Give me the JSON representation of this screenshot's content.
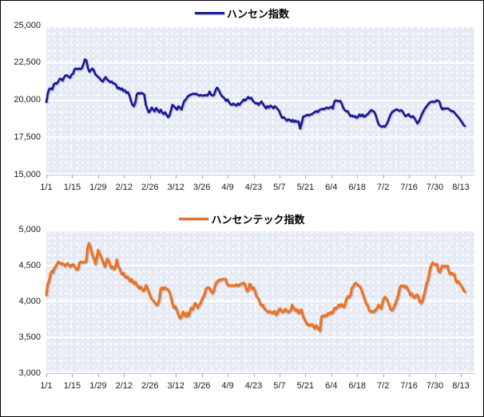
{
  "chart_data": [
    {
      "type": "line",
      "legend_label": "ハンセン指数",
      "line_color": "#1a1a96",
      "legend_position": "top-center",
      "grid": "horizontal-white",
      "y_min": 15000,
      "y_max": 25000,
      "y_tick_labels": [
        "25,000",
        "22,500",
        "20,000",
        "17,500",
        "15,000"
      ],
      "x_tick_labels": [
        "1/1",
        "1/15",
        "1/29",
        "2/12",
        "2/26",
        "3/12",
        "3/26",
        "4/9",
        "4/23",
        "5/7",
        "5/21",
        "6/4",
        "6/18",
        "7/2",
        "7/16",
        "7/30",
        "8/13"
      ],
      "values": [
        19860,
        20480,
        20750,
        20780,
        20710,
        21050,
        21130,
        21100,
        21240,
        21420,
        21420,
        21310,
        21540,
        21660,
        21660,
        21570,
        21500,
        21720,
        21770,
        22070,
        22120,
        22070,
        22120,
        22070,
        22160,
        22430,
        22730,
        22660,
        22160,
        21900,
        21990,
        22120,
        21990,
        21720,
        21630,
        21540,
        21450,
        21310,
        21240,
        21420,
        21540,
        21360,
        21310,
        21190,
        21240,
        21130,
        21100,
        21010,
        20780,
        20830,
        20710,
        20780,
        20600,
        20660,
        20480,
        20530,
        20300,
        19950,
        19680,
        19590,
        19860,
        20390,
        20480,
        20430,
        20480,
        20440,
        20360,
        19680,
        19410,
        19180,
        19290,
        19500,
        19360,
        19240,
        19470,
        19330,
        19180,
        19360,
        19180,
        19060,
        19180,
        19010,
        18850,
        18970,
        19330,
        19680,
        19590,
        19470,
        19360,
        19590,
        19500,
        19360,
        19680,
        19950,
        20040,
        20210,
        20300,
        20360,
        20390,
        20430,
        20390,
        20430,
        20360,
        20300,
        20340,
        20300,
        20300,
        20340,
        20300,
        20360,
        20570,
        20360,
        20300,
        20360,
        20660,
        20830,
        20710,
        20480,
        20300,
        20210,
        20120,
        19950,
        20040,
        19860,
        19720,
        19680,
        19770,
        19680,
        19630,
        19770,
        19680,
        19810,
        19910,
        20040,
        19980,
        20090,
        20210,
        20090,
        20160,
        19980,
        19860,
        19770,
        19810,
        19680,
        19810,
        19910,
        19730,
        19590,
        19450,
        19590,
        19500,
        19630,
        19560,
        19450,
        19590,
        19500,
        19380,
        19240,
        18970,
        18800,
        18850,
        18740,
        18620,
        18710,
        18670,
        18560,
        18670,
        18530,
        18620,
        18530,
        18560,
        18090,
        18440,
        18880,
        18920,
        18970,
        19030,
        18970,
        19030,
        19060,
        19150,
        19200,
        19270,
        19200,
        19330,
        19380,
        19420,
        19380,
        19450,
        19500,
        19450,
        19500,
        19560,
        19420,
        19890,
        19980,
        19950,
        19910,
        19950,
        19770,
        19500,
        19330,
        19240,
        19270,
        19060,
        18920,
        18970,
        18880,
        18920,
        18800,
        18880,
        19030,
        18920,
        19030,
        18880,
        18920,
        19030,
        19100,
        19240,
        19330,
        19270,
        19200,
        18970,
        18620,
        18350,
        18260,
        18210,
        18260,
        18210,
        18350,
        18530,
        18800,
        19030,
        19200,
        19270,
        19330,
        19380,
        19330,
        19270,
        19330,
        19240,
        19060,
        18920,
        18970,
        19060,
        18920,
        18850,
        18920,
        18800,
        18620,
        18440,
        18560,
        18800,
        19060,
        19240,
        19420,
        19560,
        19680,
        19810,
        19860,
        19910,
        19860,
        19910,
        19980,
        19950,
        19860,
        19500,
        19380,
        19450,
        19420,
        19450,
        19420,
        19330,
        19240,
        19270,
        19150,
        19030,
        18920,
        18800,
        18670,
        18530,
        18350,
        18260
      ]
    },
    {
      "type": "line",
      "legend_label": "ハンセンテック指数",
      "line_color": "#ee7220",
      "legend_position": "top-center",
      "grid": "horizontal-white",
      "y_min": 3000,
      "y_max": 5000,
      "y_tick_labels": [
        "5,000",
        "4,500",
        "4,000",
        "3,500",
        "3,000"
      ],
      "x_tick_labels": [
        "1/1",
        "1/15",
        "1/29",
        "2/12",
        "2/26",
        "3/12",
        "3/26",
        "4/9",
        "4/23",
        "5/7",
        "5/21",
        "6/4",
        "6/18",
        "7/2",
        "7/16",
        "7/30",
        "8/13"
      ],
      "values": [
        4090,
        4245,
        4280,
        4375,
        4420,
        4405,
        4465,
        4485,
        4520,
        4550,
        4540,
        4520,
        4530,
        4515,
        4495,
        4515,
        4530,
        4505,
        4485,
        4505,
        4515,
        4495,
        4465,
        4440,
        4465,
        4540,
        4550,
        4550,
        4540,
        4550,
        4555,
        4745,
        4810,
        4765,
        4690,
        4635,
        4580,
        4520,
        4615,
        4715,
        4670,
        4625,
        4580,
        4530,
        4485,
        4550,
        4595,
        4560,
        4505,
        4465,
        4485,
        4450,
        4480,
        4580,
        4495,
        4465,
        4410,
        4375,
        4395,
        4355,
        4330,
        4345,
        4320,
        4280,
        4310,
        4270,
        4245,
        4270,
        4230,
        4205,
        4180,
        4205,
        4170,
        4145,
        4170,
        4225,
        4190,
        4135,
        4085,
        4040,
        4020,
        3995,
        3975,
        3950,
        3965,
        4025,
        4170,
        4190,
        4170,
        4195,
        4180,
        4170,
        4150,
        4115,
        4040,
        3965,
        3910,
        3930,
        3885,
        3840,
        3780,
        3765,
        3800,
        3855,
        3810,
        3790,
        3840,
        3800,
        3855,
        3910,
        3885,
        3930,
        3975,
        3950,
        3910,
        3950,
        3975,
        4025,
        4060,
        4095,
        4170,
        4190,
        4195,
        4180,
        4135,
        4115,
        4150,
        4225,
        4265,
        4280,
        4300,
        4295,
        4310,
        4310,
        4310,
        4310,
        4245,
        4220,
        4220,
        4220,
        4220,
        4220,
        4220,
        4235,
        4220,
        4220,
        4245,
        4245,
        4255,
        4255,
        4195,
        4145,
        4160,
        4245,
        4220,
        4170,
        4190,
        4145,
        4080,
        4050,
        4025,
        3965,
        3940,
        3950,
        3900,
        3885,
        3865,
        3850,
        3865,
        3850,
        3835,
        3855,
        3865,
        3810,
        3835,
        3885,
        3900,
        3865,
        3850,
        3875,
        3895,
        3865,
        3850,
        3865,
        3875,
        3950,
        3910,
        3885,
        3865,
        3885,
        3835,
        3865,
        3885,
        3800,
        3765,
        3725,
        3690,
        3670,
        3680,
        3665,
        3680,
        3650,
        3625,
        3665,
        3640,
        3615,
        3590,
        3780,
        3800,
        3790,
        3810,
        3800,
        3835,
        3825,
        3850,
        3835,
        3865,
        3910,
        3900,
        3920,
        3950,
        3930,
        3960,
        3935,
        3920,
        3975,
        4040,
        4070,
        4060,
        4095,
        4190,
        4205,
        4245,
        4255,
        4235,
        4220,
        4205,
        4170,
        4115,
        4060,
        4005,
        3960,
        3935,
        3875,
        3855,
        3865,
        3850,
        3865,
        3885,
        3910,
        3950,
        3925,
        3900,
        3985,
        4040,
        4060,
        4035,
        3995,
        3950,
        3895,
        3875,
        3900,
        3930,
        3985,
        4040,
        4095,
        4195,
        4220,
        4210,
        4220,
        4195,
        4210,
        4170,
        4135,
        4085,
        4110,
        4070,
        4050,
        4080,
        4095,
        4060,
        3995,
        3975,
        4005,
        4070,
        4150,
        4245,
        4280,
        4375,
        4465,
        4515,
        4540,
        4520,
        4505,
        4520,
        4430,
        4405,
        4455,
        4495,
        4485,
        4495,
        4480,
        4495,
        4410,
        4380,
        4395,
        4375,
        4380,
        4300,
        4265,
        4280,
        4245,
        4225,
        4195,
        4160,
        4135
      ]
    }
  ]
}
